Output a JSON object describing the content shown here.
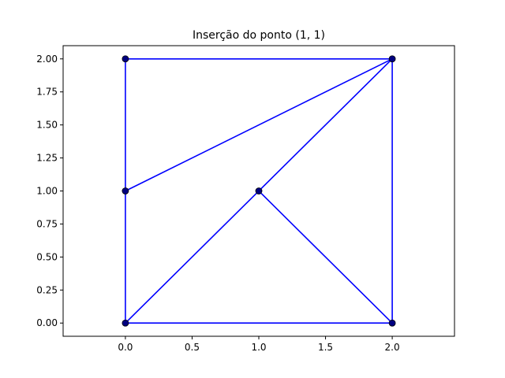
{
  "chart_data": {
    "type": "scatter",
    "title": "Inserção do ponto (1, 1)",
    "xlabel": "",
    "ylabel": "",
    "xlim": [
      -0.4667,
      2.4667
    ],
    "ylim": [
      -0.1,
      2.1
    ],
    "xticks": [
      0.0,
      0.5,
      1.0,
      1.5,
      2.0
    ],
    "xtick_labels": [
      "0.0",
      "0.5",
      "1.0",
      "1.5",
      "2.0"
    ],
    "yticks": [
      0.0,
      0.25,
      0.5,
      0.75,
      1.0,
      1.25,
      1.5,
      1.75,
      2.0
    ],
    "ytick_labels": [
      "0.00",
      "0.25",
      "0.50",
      "0.75",
      "1.00",
      "1.25",
      "1.50",
      "1.75",
      "2.00"
    ],
    "grid": false,
    "points": [
      {
        "x": 0,
        "y": 0
      },
      {
        "x": 2,
        "y": 0
      },
      {
        "x": 2,
        "y": 2
      },
      {
        "x": 0,
        "y": 2
      },
      {
        "x": 0,
        "y": 1
      },
      {
        "x": 1,
        "y": 1
      }
    ],
    "edges": [
      [
        [
          0,
          0
        ],
        [
          2,
          0
        ]
      ],
      [
        [
          2,
          0
        ],
        [
          2,
          2
        ]
      ],
      [
        [
          2,
          2
        ],
        [
          0,
          2
        ]
      ],
      [
        [
          0,
          2
        ],
        [
          0,
          1
        ]
      ],
      [
        [
          0,
          1
        ],
        [
          0,
          0
        ]
      ],
      [
        [
          0,
          1
        ],
        [
          2,
          2
        ]
      ],
      [
        [
          0,
          0
        ],
        [
          1,
          1
        ]
      ],
      [
        [
          1,
          1
        ],
        [
          2,
          2
        ]
      ],
      [
        [
          1,
          1
        ],
        [
          2,
          0
        ]
      ]
    ],
    "colors": {
      "edge": "#0000ff",
      "point": "#000080"
    }
  }
}
